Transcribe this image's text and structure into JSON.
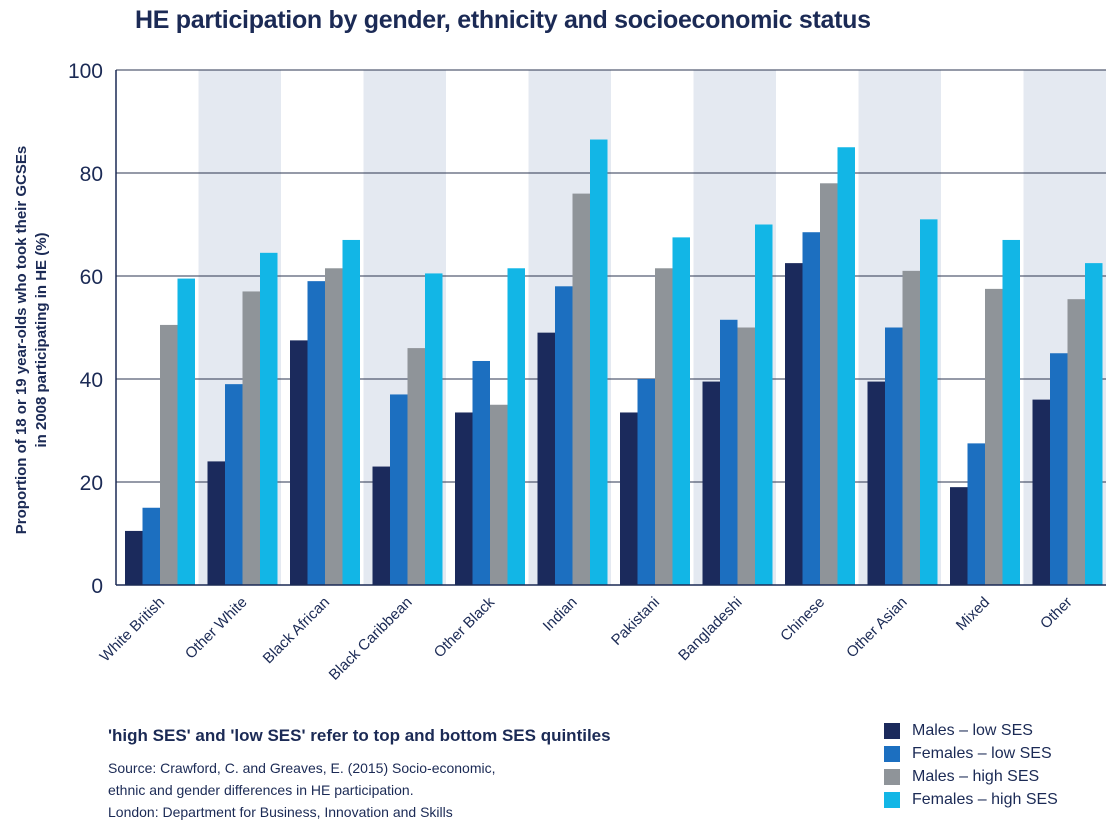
{
  "title": "HE participation by gender, ethnicity and socioeconomic status",
  "note": "'high SES' and 'low SES' refer to top and bottom SES quintiles",
  "source_lines": [
    "Source: Crawford, C. and Greaves, E. (2015) Socio-economic,",
    "ethnic and gender differences in HE participation.",
    "London: Department for Business, Innovation and Skills"
  ],
  "colors": {
    "males_low": "#1b2a5c",
    "females_low": "#1c6fc0",
    "males_high": "#8f9499",
    "females_high": "#12b6e6",
    "band": "#e4e9f1",
    "text": "#1b2a55"
  },
  "chart_data": {
    "type": "bar",
    "title": "HE participation by gender, ethnicity and socioeconomic status",
    "ylabel_lines": [
      "Proportion of 18 or 19 year-olds who took their GCSEs",
      "in 2008 participating in HE (%)"
    ],
    "xlabel": "",
    "ylim": [
      0,
      100
    ],
    "yticks": [
      0,
      20,
      40,
      60,
      80,
      100
    ],
    "grid": true,
    "legend_position": "bottom-right",
    "categories": [
      "White British",
      "Other White",
      "Black African",
      "Black Caribbean",
      "Other Black",
      "Indian",
      "Pakistani",
      "Bangladeshi",
      "Chinese",
      "Other Asian",
      "Mixed",
      "Other"
    ],
    "series": [
      {
        "name": "Males – low SES",
        "values": [
          10.5,
          24,
          47.5,
          23,
          33.5,
          49,
          33.5,
          39.5,
          62.5,
          39.5,
          19,
          36
        ]
      },
      {
        "name": "Females – low SES",
        "values": [
          15,
          39,
          59,
          37,
          43.5,
          58,
          40,
          51.5,
          68.5,
          50,
          27.5,
          45
        ]
      },
      {
        "name": "Males – high SES",
        "values": [
          50.5,
          57,
          61.5,
          46,
          35,
          76,
          61.5,
          50,
          78,
          61,
          57.5,
          55.5
        ]
      },
      {
        "name": "Females – high SES",
        "values": [
          59.5,
          64.5,
          67,
          60.5,
          61.5,
          86.5,
          67.5,
          70,
          85,
          71,
          67,
          62.5
        ]
      }
    ]
  }
}
